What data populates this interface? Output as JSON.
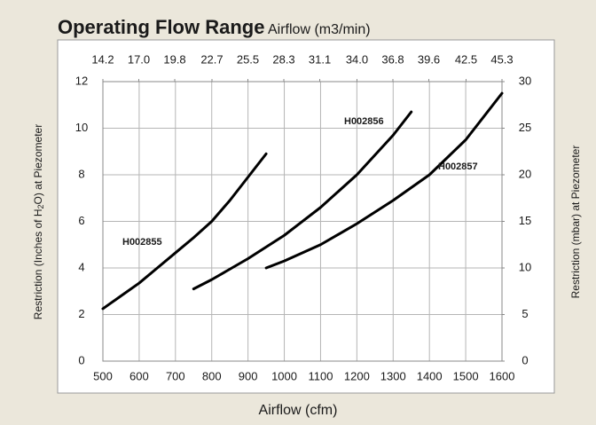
{
  "chart_data": {
    "type": "line",
    "title": "Operating Flow Range",
    "subtitle": "Airflow (m3/min)",
    "xlabel": "Airflow (cfm)",
    "ylabel_parts": [
      "Restriction (Inches of H",
      "2",
      "O) at Piezometer"
    ],
    "y2label": "Restriction (mbar) at Piezometer",
    "xlim": [
      500,
      1600
    ],
    "xticks": [
      500,
      600,
      700,
      800,
      900,
      1000,
      1100,
      1200,
      1300,
      1400,
      1500,
      1600
    ],
    "x2lim": [
      14.2,
      45.3
    ],
    "x2ticks": [
      14.2,
      {
        "value": 17,
        "label": "17.0"
      },
      19.8,
      22.7,
      25.5,
      28.3,
      31.1,
      {
        "value": 34,
        "label": "34.0"
      },
      36.8,
      39.6,
      42.5,
      45.3
    ],
    "ylim": [
      0,
      12
    ],
    "yticks": [
      0,
      2,
      4,
      6,
      8,
      10,
      12
    ],
    "y2lim": [
      0,
      30
    ],
    "y2ticks": [
      0,
      5,
      10,
      15,
      20,
      25,
      30
    ],
    "grid": true,
    "series": [
      {
        "name": "H002855",
        "color": "#000000",
        "x": [
          500,
          550,
          600,
          650,
          700,
          750,
          800,
          850,
          900,
          950
        ],
        "values": [
          2.25,
          2.8,
          3.35,
          4.0,
          4.65,
          5.3,
          6.0,
          6.9,
          7.9,
          8.9
        ]
      },
      {
        "name": "H002856",
        "color": "#000000",
        "x": [
          750,
          800,
          900,
          1000,
          1100,
          1200,
          1300,
          1350
        ],
        "values": [
          3.1,
          3.5,
          4.4,
          5.4,
          6.6,
          8.0,
          9.7,
          10.7
        ]
      },
      {
        "name": "H002857",
        "color": "#000000",
        "x": [
          950,
          1000,
          1100,
          1200,
          1300,
          1400,
          1500,
          1600
        ],
        "values": [
          4.0,
          4.3,
          5.0,
          5.9,
          6.9,
          8.0,
          9.5,
          11.5
        ]
      }
    ]
  }
}
